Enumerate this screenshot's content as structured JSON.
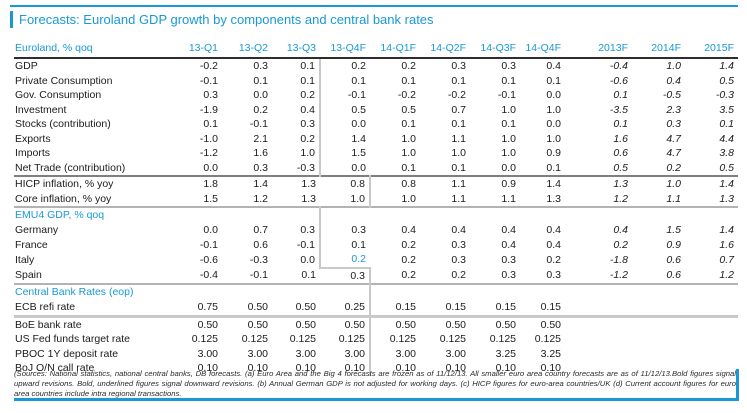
{
  "colors": {
    "accent": "#1899d6",
    "text": "#1b1b1b",
    "forecast_boundary_gray": "#c9c9c9",
    "section_rule_dark": "#7f7f7f",
    "section_rule_light": "#b3b3b3",
    "header_rule_black": "#2d2d2d"
  },
  "title": "Forecasts: Euroland GDP growth by components and central bank rates",
  "table": {
    "label_header": "Euroland, % qoq",
    "columns": [
      "13-Q1",
      "13-Q2",
      "13-Q3",
      "13-Q4F",
      "14-Q1F",
      "14-Q2F",
      "14-Q3F",
      "14-Q4F",
      "2013F",
      "2014F",
      "2015F"
    ],
    "sections": [
      {
        "header": null,
        "rows": [
          {
            "label": "GDP",
            "boundary": 2,
            "values": [
              "-0.2",
              "0.3",
              "0.1",
              "0.2",
              "0.2",
              "0.3",
              "0.3",
              "0.4",
              "-0.4",
              "1.0",
              "1.4"
            ]
          },
          {
            "label": "Private Consumption",
            "boundary": 2,
            "values": [
              "-0.1",
              "0.1",
              "0.1",
              "0.1",
              "0.1",
              "0.1",
              "0.1",
              "0.1",
              "-0.6",
              "0.4",
              "0.5"
            ]
          },
          {
            "label": "Gov. Consumption",
            "boundary": 2,
            "values": [
              "0.3",
              "0.0",
              "0.2",
              "-0.1",
              "-0.2",
              "-0.2",
              "-0.1",
              "0.0",
              "0.1",
              "-0.5",
              "-0.3"
            ]
          },
          {
            "label": "Investment",
            "boundary": 2,
            "values": [
              "-1.9",
              "0.2",
              "0.4",
              "0.5",
              "0.5",
              "0.7",
              "1.0",
              "1.0",
              "-3.5",
              "2.3",
              "3.5"
            ]
          },
          {
            "label": "Stocks (contribution)",
            "boundary": 2,
            "values": [
              "0.1",
              "-0.1",
              "0.3",
              "0.0",
              "0.1",
              "0.1",
              "0.1",
              "0.0",
              "0.1",
              "0.3",
              "0.1"
            ]
          },
          {
            "label": "Exports",
            "boundary": 2,
            "values": [
              "-1.0",
              "2.1",
              "0.2",
              "1.4",
              "1.0",
              "1.1",
              "1.0",
              "1.0",
              "1.6",
              "4.7",
              "4.4"
            ]
          },
          {
            "label": "Imports",
            "boundary": 2,
            "values": [
              "-1.2",
              "1.6",
              "1.0",
              "1.5",
              "1.0",
              "1.0",
              "1.0",
              "0.9",
              "0.6",
              "4.7",
              "3.8"
            ]
          },
          {
            "label": "Net Trade (contribution)",
            "boundary": 2,
            "values": [
              "0.0",
              "0.3",
              "-0.3",
              "0.0",
              "0.1",
              "0.1",
              "0.0",
              "0.1",
              "0.5",
              "0.2",
              "0.5"
            ]
          },
          {
            "label": "HICP inflation, % yoy",
            "boundary": 3,
            "top_rule": "rule-dark",
            "values": [
              "1.8",
              "1.4",
              "1.3",
              "0.8",
              "0.8",
              "1.1",
              "0.9",
              "1.4",
              "1.3",
              "1.0",
              "1.4"
            ]
          },
          {
            "label": "Core inflation, % yoy",
            "boundary": 3,
            "values": [
              "1.5",
              "1.2",
              "1.3",
              "1.0",
              "1.0",
              "1.1",
              "1.1",
              "1.3",
              "1.2",
              "1.1",
              "1.3"
            ]
          }
        ]
      },
      {
        "header": "EMU4 GDP, % qoq",
        "header_boundary": 2,
        "header_top_rule": "rule-light",
        "rows": [
          {
            "label": "Germany",
            "boundary": 2,
            "values": [
              "0.0",
              "0.7",
              "0.3",
              "0.3",
              "0.4",
              "0.4",
              "0.4",
              "0.4",
              "0.4",
              "1.5",
              "1.4"
            ]
          },
          {
            "label": "France",
            "boundary": 2,
            "values": [
              "-0.1",
              "0.6",
              "-0.1",
              "0.1",
              "0.2",
              "0.3",
              "0.4",
              "0.4",
              "0.2",
              "0.9",
              "1.6"
            ]
          },
          {
            "label": "Italy",
            "boundary": 2,
            "highlight_index": 3,
            "jog_index": 3,
            "values": [
              "-0.6",
              "-0.3",
              "0.0",
              "0.2",
              "0.2",
              "0.3",
              "0.3",
              "0.2",
              "-1.8",
              "0.6",
              "0.7"
            ]
          },
          {
            "label": "Spain",
            "boundary": 3,
            "values": [
              "-0.4",
              "-0.1",
              "0.1",
              "0.3",
              "0.2",
              "0.2",
              "0.3",
              "0.3",
              "-1.2",
              "0.6",
              "1.2"
            ]
          }
        ]
      },
      {
        "header": "Central Bank Rates (eop)",
        "header_boundary": 3,
        "header_top_rule": "rule-light",
        "rows": [
          {
            "label": "ECB refi rate",
            "boundary": 3,
            "values": [
              "0.75",
              "0.50",
              "0.50",
              "0.25",
              "0.15",
              "0.15",
              "0.15",
              "0.15",
              "",
              "",
              ""
            ]
          },
          {
            "label": "BoE bank rate",
            "boundary": 3,
            "top_rule": "rule-thick",
            "values": [
              "0.50",
              "0.50",
              "0.50",
              "0.50",
              "0.50",
              "0.50",
              "0.50",
              "0.50",
              "",
              "",
              ""
            ]
          },
          {
            "label": "US Fed funds target rate",
            "boundary": 3,
            "values": [
              "0.125",
              "0.125",
              "0.125",
              "0.125",
              "0.125",
              "0.125",
              "0.125",
              "0.125",
              "",
              "",
              ""
            ]
          },
          {
            "label": "PBOC 1Y deposit rate",
            "boundary": 3,
            "values": [
              "3.00",
              "3.00",
              "3.00",
              "3.00",
              "3.00",
              "3.00",
              "3.25",
              "3.25",
              "",
              "",
              ""
            ]
          },
          {
            "label": "BoJ O/N call rate",
            "boundary": 3,
            "values": [
              "0.10",
              "0.10",
              "0.10",
              "0.10",
              "0.10",
              "0.10",
              "0.10",
              "0.10",
              "",
              "",
              ""
            ]
          }
        ]
      }
    ]
  },
  "footnote": "(Sources: National statistics, national central banks, DB forecasts. (a) Euro Area and the Big 4 forecasts are frozen as of 11/12/13. All smaller euro area country forecasts are as of 11/12/13.Bold figures signal upward revisions. Bold, underlined figures signal downward revisions. (b) Annual German GDP is not adjusted for working days. (c) HICP figures for euro-area countries/UK (d) Current account figures for euro area countries include intra regional transactions."
}
